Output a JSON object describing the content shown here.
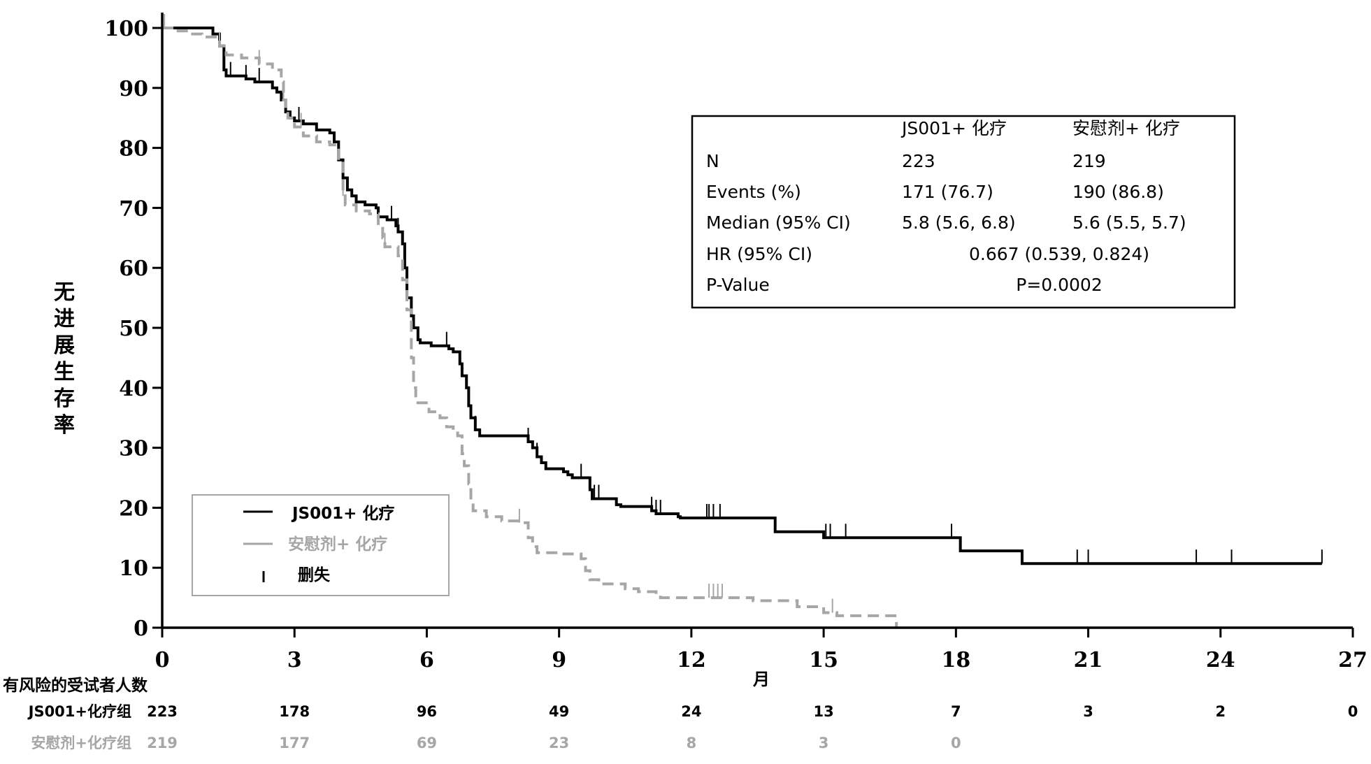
{
  "chart_data": {
    "type": "line",
    "subtype": "kaplan-meier",
    "ylabel": "无进展生存率",
    "xlabel": "月",
    "xlim": [
      0,
      27
    ],
    "ylim": [
      0,
      100
    ],
    "x_ticks": [
      0,
      3,
      6,
      9,
      12,
      15,
      18,
      21,
      24,
      27
    ],
    "y_ticks": [
      0,
      10,
      20,
      30,
      40,
      50,
      60,
      70,
      80,
      90,
      100
    ],
    "colors": {
      "treatment": "#000000",
      "placebo": "#a6a6a6"
    },
    "series": [
      {
        "name": "JS001+ 化疗",
        "style": "solid",
        "steps": [
          [
            0,
            100
          ],
          [
            0.9,
            100
          ],
          [
            1.15,
            99
          ],
          [
            1.3,
            97
          ],
          [
            1.4,
            93
          ],
          [
            1.45,
            92
          ],
          [
            1.9,
            91.5
          ],
          [
            2.1,
            91
          ],
          [
            2.5,
            90
          ],
          [
            2.6,
            89.3
          ],
          [
            2.7,
            88
          ],
          [
            2.8,
            86
          ],
          [
            2.9,
            85
          ],
          [
            3.0,
            84.5
          ],
          [
            3.2,
            84
          ],
          [
            3.5,
            83
          ],
          [
            3.8,
            82.5
          ],
          [
            3.9,
            81
          ],
          [
            4.0,
            78
          ],
          [
            4.1,
            75
          ],
          [
            4.2,
            73
          ],
          [
            4.3,
            72
          ],
          [
            4.4,
            71
          ],
          [
            4.6,
            70.5
          ],
          [
            4.85,
            70
          ],
          [
            4.9,
            68.5
          ],
          [
            5.1,
            68
          ],
          [
            5.3,
            67
          ],
          [
            5.35,
            66
          ],
          [
            5.45,
            64
          ],
          [
            5.5,
            60
          ],
          [
            5.55,
            55
          ],
          [
            5.65,
            52
          ],
          [
            5.7,
            50
          ],
          [
            5.8,
            48
          ],
          [
            5.85,
            47.5
          ],
          [
            6.1,
            47
          ],
          [
            6.5,
            46.5
          ],
          [
            6.6,
            46
          ],
          [
            6.75,
            44
          ],
          [
            6.8,
            42
          ],
          [
            6.9,
            40
          ],
          [
            6.95,
            37
          ],
          [
            7.0,
            35
          ],
          [
            7.1,
            33
          ],
          [
            7.2,
            32
          ],
          [
            8.3,
            31
          ],
          [
            8.4,
            30
          ],
          [
            8.5,
            28.5
          ],
          [
            8.6,
            27.5
          ],
          [
            8.7,
            26.5
          ],
          [
            9.1,
            26
          ],
          [
            9.2,
            25.5
          ],
          [
            9.3,
            25
          ],
          [
            9.7,
            23
          ],
          [
            9.75,
            21.5
          ],
          [
            10.3,
            20.5
          ],
          [
            10.4,
            20.2
          ],
          [
            11.1,
            19.5
          ],
          [
            11.2,
            19
          ],
          [
            11.7,
            18.5
          ],
          [
            11.75,
            18.3
          ],
          [
            13.9,
            16
          ],
          [
            15.0,
            15
          ],
          [
            18.1,
            12.8
          ],
          [
            19.5,
            10.7
          ],
          [
            26.3,
            10.7
          ]
        ],
        "censor_times": [
          1.55,
          1.9,
          2.2,
          3.1,
          5.2,
          5.35,
          5.55,
          6.45,
          7.1,
          8.3,
          8.5,
          9.5,
          9.8,
          9.9,
          11.1,
          11.2,
          11.3,
          12.35,
          12.4,
          12.5,
          12.65,
          15.05,
          15.15,
          15.5,
          17.9,
          20.75,
          21.0,
          23.45,
          24.25,
          26.3
        ],
        "risk_counts": [
          223,
          178,
          96,
          49,
          24,
          13,
          7,
          3,
          2,
          0
        ]
      },
      {
        "name": "安慰剂+ 化疗",
        "style": "dashed",
        "steps": [
          [
            0,
            100
          ],
          [
            0.3,
            99.5
          ],
          [
            0.6,
            99
          ],
          [
            0.9,
            98.5
          ],
          [
            1.3,
            97
          ],
          [
            1.45,
            95.5
          ],
          [
            1.8,
            95
          ],
          [
            2.2,
            94
          ],
          [
            2.5,
            93
          ],
          [
            2.7,
            91
          ],
          [
            2.75,
            88
          ],
          [
            2.8,
            86
          ],
          [
            2.85,
            85
          ],
          [
            3.0,
            83.5
          ],
          [
            3.2,
            82
          ],
          [
            3.5,
            81
          ],
          [
            3.8,
            80.5
          ],
          [
            4.0,
            78
          ],
          [
            4.1,
            72
          ],
          [
            4.15,
            70.5
          ],
          [
            4.4,
            69.5
          ],
          [
            4.7,
            69
          ],
          [
            4.9,
            67
          ],
          [
            5.0,
            65
          ],
          [
            5.05,
            63.5
          ],
          [
            5.35,
            62
          ],
          [
            5.45,
            58
          ],
          [
            5.55,
            53
          ],
          [
            5.65,
            45
          ],
          [
            5.7,
            40
          ],
          [
            5.75,
            37.5
          ],
          [
            6.05,
            36
          ],
          [
            6.3,
            35
          ],
          [
            6.45,
            33.5
          ],
          [
            6.6,
            33
          ],
          [
            6.7,
            32
          ],
          [
            6.8,
            29
          ],
          [
            6.85,
            27
          ],
          [
            6.95,
            24
          ],
          [
            7.0,
            21
          ],
          [
            7.05,
            19.5
          ],
          [
            7.35,
            18.5
          ],
          [
            7.7,
            17.8
          ],
          [
            8.1,
            17.5
          ],
          [
            8.3,
            15
          ],
          [
            8.4,
            13.5
          ],
          [
            8.5,
            12.5
          ],
          [
            9.0,
            12.3
          ],
          [
            9.5,
            11.5
          ],
          [
            9.6,
            9.5
          ],
          [
            9.7,
            8
          ],
          [
            9.9,
            7.3
          ],
          [
            10.5,
            6.5
          ],
          [
            10.8,
            6
          ],
          [
            11.2,
            5.5
          ],
          [
            11.3,
            5
          ],
          [
            13.4,
            4.5
          ],
          [
            14.4,
            3.5
          ],
          [
            15.0,
            2.5
          ],
          [
            15.3,
            2
          ],
          [
            16.6,
            2
          ],
          [
            16.65,
            0
          ]
        ],
        "censor_times": [
          0.05,
          1.3,
          2.2,
          2.75,
          3.15,
          4.1,
          5.05,
          8.1,
          12.4,
          12.5,
          12.6,
          12.7,
          15.2
        ],
        "risk_counts": [
          219,
          177,
          69,
          23,
          8,
          3,
          0
        ]
      }
    ],
    "legend": {
      "position": "bottom-left",
      "entries": [
        "JS001+ 化疗",
        "安慰剂+ 化疗",
        "删失"
      ]
    },
    "stats_table": {
      "position": "top-right",
      "headers": [
        "",
        "JS001+ 化疗",
        "安慰剂+ 化疗"
      ],
      "rows": [
        [
          "N",
          "223",
          "219"
        ],
        [
          "Events (%)",
          "171 (76.7)",
          "190 (86.8)"
        ],
        [
          "Median (95% CI)",
          "5.8 (5.6, 6.8)",
          "5.6 (5.5, 5.7)"
        ]
      ],
      "hr_label": "HR (95% CI)",
      "hr_value": "0.667 (0.539, 0.824)",
      "p_label": "P-Value",
      "p_value": "P=0.0002"
    },
    "risk_table": {
      "title": "有风险的受试者人数",
      "labels": [
        "JS001+化疗组",
        "安慰剂+化疗组"
      ]
    }
  }
}
